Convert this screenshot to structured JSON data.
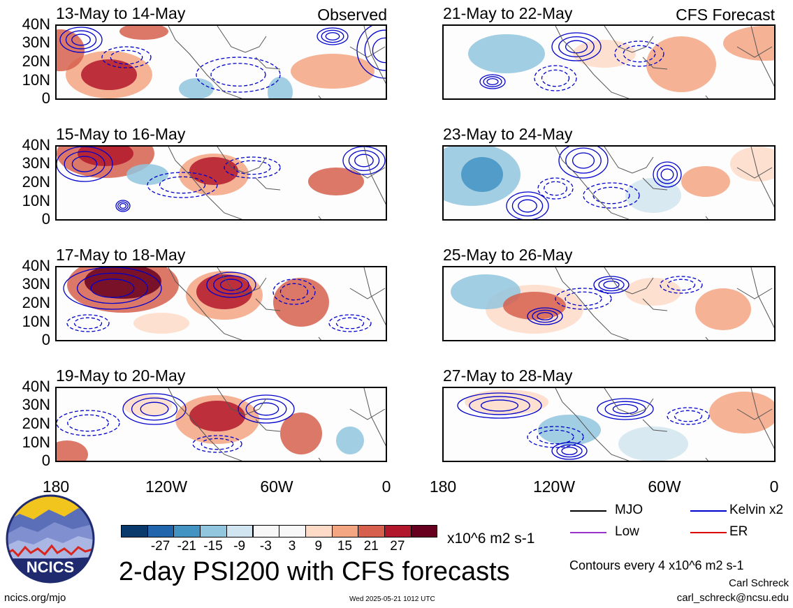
{
  "panels": [
    {
      "title": "13-May to 14-May",
      "tag": "Observed",
      "scene": 0
    },
    {
      "title": "21-May to 22-May",
      "tag": "CFS Forecast",
      "scene": 1
    },
    {
      "title": "15-May to 16-May",
      "tag": "",
      "scene": 2
    },
    {
      "title": "23-May to 24-May",
      "tag": "",
      "scene": 3
    },
    {
      "title": "17-May to 18-May",
      "tag": "",
      "scene": 4
    },
    {
      "title": "25-May to 26-May",
      "tag": "",
      "scene": 5
    },
    {
      "title": "19-May to 20-May",
      "tag": "",
      "scene": 6
    },
    {
      "title": "27-May to 28-May",
      "tag": "",
      "scene": 7
    }
  ],
  "y_axis_labels": [
    "40N",
    "30N",
    "20N",
    "10N",
    "0"
  ],
  "x_axis_labels": [
    "180",
    "120W",
    "60W",
    "0"
  ],
  "colorbar": {
    "colors": [
      "#0a3a6b",
      "#2166ac",
      "#4393c3",
      "#92c5de",
      "#d1e5f0",
      "#f7f7f7",
      "#f7f7f7",
      "#fddbc7",
      "#f4a582",
      "#d6604d",
      "#b2182b",
      "#67001f"
    ],
    "labels": [
      "-27",
      "-21",
      "-15",
      "-9",
      "-3",
      "3",
      "9",
      "15",
      "21",
      "27"
    ],
    "units": "x10^6 m2 s-1"
  },
  "legend": [
    {
      "label": "MJO",
      "color": "#000000"
    },
    {
      "label": "Kelvin x2",
      "color": "#0000cc"
    },
    {
      "label": "Low",
      "color": "#9933cc"
    },
    {
      "label": "ER",
      "color": "#dd0000"
    }
  ],
  "logo_text": "NCICS",
  "main_title": "2-day PSI200 with CFS forecasts",
  "contours_note": "Contours every 4 x10^6 m2 s-1",
  "author": "Carl Schreck",
  "email": "carl_schreck@ncsu.edu",
  "website": "ncics.org/mjo",
  "timestamp": "Wed 2025-05-21 1012 UTC"
}
